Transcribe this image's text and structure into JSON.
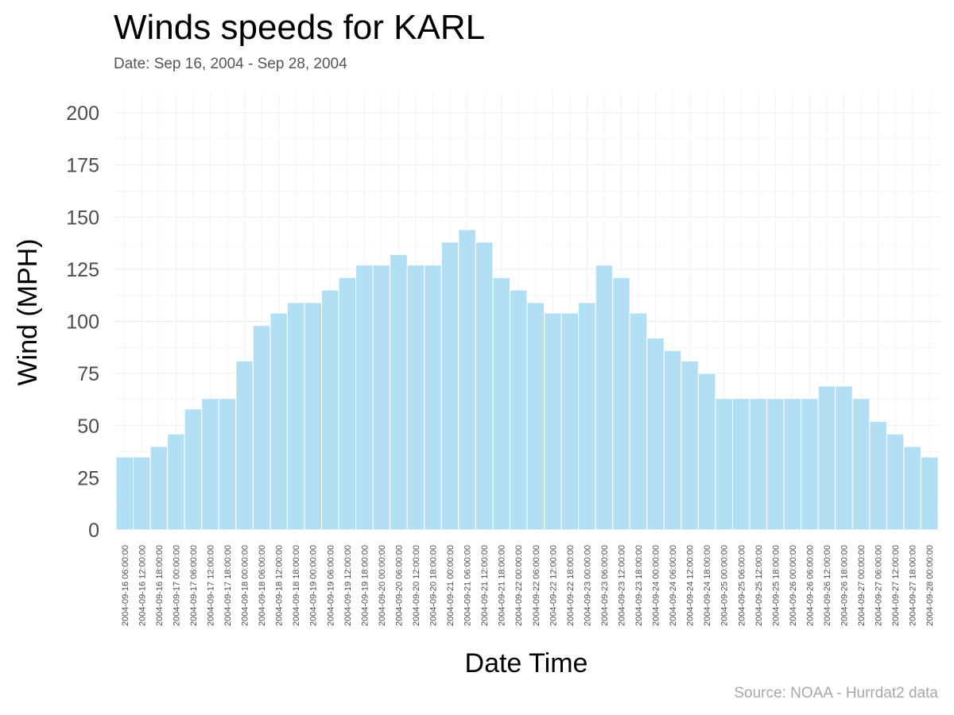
{
  "chart_data": {
    "type": "bar",
    "title": "Winds speeds for KARL",
    "subtitle": "Date:  Sep 16, 2004 - Sep 28, 2004",
    "caption": "Source: NOAA - Hurrdat2 data",
    "xlabel": "Date Time",
    "ylabel": "Wind (MPH)",
    "ylim": [
      0,
      210
    ],
    "yticks": [
      0,
      25,
      50,
      75,
      100,
      125,
      150,
      175,
      200
    ],
    "grid": true,
    "bar_color": "#b3dff5",
    "categories": [
      "2004-09-16 06:00:00",
      "2004-09-16 12:00:00",
      "2004-09-16 18:00:00",
      "2004-09-17 00:00:00",
      "2004-09-17 06:00:00",
      "2004-09-17 12:00:00",
      "2004-09-17 18:00:00",
      "2004-09-18 00:00:00",
      "2004-09-18 06:00:00",
      "2004-09-18 12:00:00",
      "2004-09-18 18:00:00",
      "2004-09-19 00:00:00",
      "2004-09-19 06:00:00",
      "2004-09-19 12:00:00",
      "2004-09-19 18:00:00",
      "2004-09-20 00:00:00",
      "2004-09-20 06:00:00",
      "2004-09-20 12:00:00",
      "2004-09-20 18:00:00",
      "2004-09-21 00:00:00",
      "2004-09-21 06:00:00",
      "2004-09-21 12:00:00",
      "2004-09-21 18:00:00",
      "2004-09-22 00:00:00",
      "2004-09-22 06:00:00",
      "2004-09-22 12:00:00",
      "2004-09-22 18:00:00",
      "2004-09-23 00:00:00",
      "2004-09-23 06:00:00",
      "2004-09-23 12:00:00",
      "2004-09-23 18:00:00",
      "2004-09-24 00:00:00",
      "2004-09-24 06:00:00",
      "2004-09-24 12:00:00",
      "2004-09-24 18:00:00",
      "2004-09-25 00:00:00",
      "2004-09-25 06:00:00",
      "2004-09-25 12:00:00",
      "2004-09-25 18:00:00",
      "2004-09-26 00:00:00",
      "2004-09-26 06:00:00",
      "2004-09-26 12:00:00",
      "2004-09-26 18:00:00",
      "2004-09-27 00:00:00",
      "2004-09-27 06:00:00",
      "2004-09-27 12:00:00",
      "2004-09-27 18:00:00",
      "2004-09-28 00:00:00"
    ],
    "values": [
      35,
      35,
      40,
      46,
      58,
      63,
      63,
      81,
      98,
      104,
      109,
      109,
      115,
      121,
      127,
      127,
      132,
      127,
      127,
      138,
      144,
      138,
      121,
      115,
      109,
      104,
      104,
      109,
      127,
      121,
      104,
      92,
      86,
      81,
      75,
      63,
      63,
      63,
      63,
      63,
      63,
      69,
      69,
      63,
      52,
      46,
      40,
      35
    ]
  }
}
